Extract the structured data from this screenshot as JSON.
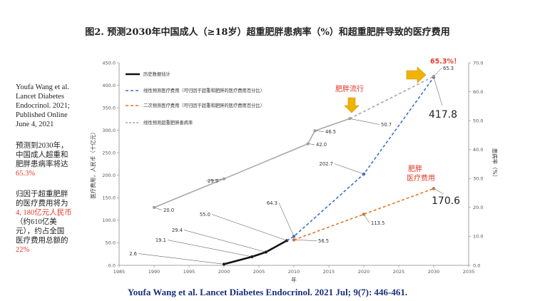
{
  "title": "图2. 预测2030年中国成人（≥18岁）超重肥胖患病率（%）和超重肥胖导致的医疗费用",
  "footer": "Youfa Wang et al. Lancet Diabetes Endocrinol. 2021 Jul; 9(7): 446-461.",
  "sidebar": {
    "citation": [
      "Youfa Wang et al.",
      "Lancet Diabetes",
      "Endocrinol. 2021;",
      "Published Online",
      "June 4, 2021"
    ],
    "prevalence_text": [
      "预测到2030年，",
      "中国成人超重和",
      "肥胖患病率将达"
    ],
    "prevalence_value": "65.3%",
    "cost_text": [
      "归因于超重肥胖",
      "的医疗费用将为"
    ],
    "cost_value": "4, 180亿元人民币",
    "cost_text2": [
      "（约610亿美",
      "元），约占全国",
      "医疗费用总额的"
    ],
    "cost_share": "22%"
  },
  "chart_data": {
    "type": "line",
    "xlabel": "年",
    "ylabel_left": "医疗费用，人民币（十亿元）",
    "ylabel_right": "患病率（%）",
    "xlim": [
      1985,
      2035
    ],
    "x_ticks": [
      1985,
      1990,
      1995,
      2000,
      2005,
      2010,
      2015,
      2020,
      2025,
      2030,
      2035
    ],
    "ylim_left": [
      0,
      450
    ],
    "y_ticks_left": [
      "0.0",
      "50.0",
      "100.0",
      "150.0",
      "200.0",
      "250.0",
      "300.0",
      "350.0",
      "400.0",
      "450.0"
    ],
    "ylim_right": [
      0,
      70
    ],
    "y_ticks_right": [
      "0.0",
      "10.0",
      "20.0",
      "30.0",
      "40.0",
      "50.0",
      "60.0",
      "70.0"
    ],
    "series": [
      {
        "name": "历史数据估计",
        "axis": "left",
        "color": "#111111",
        "style": "solid",
        "width": 2.6,
        "points": [
          [
            2000,
            2.6
          ],
          [
            2004,
            19.1
          ],
          [
            2006,
            29.4
          ],
          [
            2009,
            55.0
          ]
        ],
        "labels": [
          "2.6",
          "19.1",
          "29.4",
          "55.0"
        ]
      },
      {
        "name": "线性预测医疗费用（可归因于超重和肥胖的医疗费用百分比）",
        "axis": "left",
        "color": "#3a6fc9",
        "style": "dashed",
        "width": 1.6,
        "points": [
          [
            2009,
            55.0
          ],
          [
            2010,
            64.3
          ],
          [
            2020,
            202.7
          ],
          [
            2030,
            417.8
          ]
        ],
        "labels": [
          "",
          "64.3",
          "202.7",
          ""
        ]
      },
      {
        "name": "二次预测医疗费用（可归因于超重和肥胖的医疗费用百分比）",
        "axis": "left",
        "color": "#e8742a",
        "style": "dashed",
        "width": 1.6,
        "points": [
          [
            2010,
            56.5
          ],
          [
            2020,
            113.5
          ],
          [
            2030,
            170.6
          ]
        ],
        "labels": [
          "56.5",
          "113.5",
          ""
        ]
      },
      {
        "name": "线性预测超重肥胖患病率",
        "axis": "right",
        "color": "#a8a8a8",
        "style": "solid-then-dashed",
        "width": 1.6,
        "points": [
          [
            1990,
            20.0
          ],
          [
            2000,
            29.9
          ],
          [
            2012,
            42.0
          ],
          [
            2013,
            46.5
          ],
          [
            2018,
            50.7
          ],
          [
            2030,
            65.3
          ]
        ],
        "labels": [
          "20.0",
          "29.9",
          "42.0",
          "46.5",
          "50.7",
          "65.3"
        ]
      }
    ],
    "annotations": {
      "cost_2030": "417.8",
      "quad_2030": "170.6",
      "prev_2030": "65.3%！",
      "epidemic": "肥胖流行",
      "medical_cost": [
        "肥胖",
        "医疗费用"
      ]
    },
    "colors": {
      "accent_red": "#e23a2a",
      "arrow_gold": "#f0b400"
    }
  }
}
